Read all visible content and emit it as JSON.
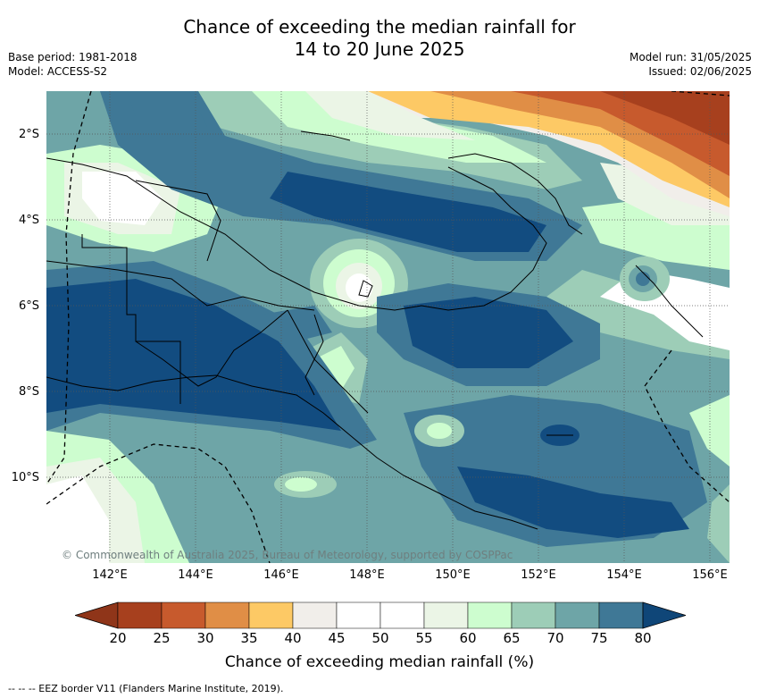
{
  "title": {
    "line1": "Chance of exceeding the median rainfall for",
    "line2": "14 to 20 June 2025"
  },
  "meta_left": {
    "base_period": "Base period: 1981-2018",
    "model": "Model: ACCESS-S2"
  },
  "meta_right": {
    "model_run": "Model run: 31/05/2025",
    "issued": "Issued: 02/06/2025"
  },
  "lat_labels": [
    "2°S",
    "4°S",
    "6°S",
    "8°S",
    "10°S"
  ],
  "lon_labels": [
    "142°E",
    "144°E",
    "146°E",
    "148°E",
    "150°E",
    "152°E",
    "154°E",
    "156°E"
  ],
  "copyright": "© Commonwealth of Australia 2025, Bureau of Meteorology, supported by COSPPac",
  "colorbar": {
    "label": "Chance of exceeding median rainfall (%)",
    "ticks": [
      "20",
      "25",
      "30",
      "35",
      "40",
      "45",
      "50",
      "55",
      "60",
      "65",
      "70",
      "75",
      "80"
    ],
    "colors": [
      "#a7401e",
      "#c75a2d",
      "#e08e46",
      "#fdc965",
      "#f1eeea",
      "#ffffff",
      "#ffffff",
      "#ebf5e6",
      "#cdfdcf",
      "#9dcdb7",
      "#6ea5a7",
      "#3f7896",
      "#124c80"
    ],
    "under_color": "#8f3519",
    "over_color": "#0f4678"
  },
  "eez_legend": "--  --  -- EEZ border V11 (Flanders Marine Institute, 2019)."
}
